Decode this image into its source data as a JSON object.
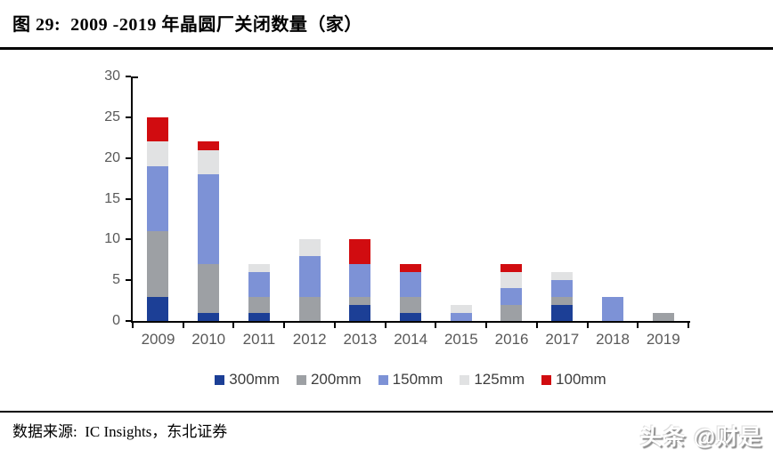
{
  "title": "图 29:  2009 -2019 年晶圆厂关闭数量（家）",
  "source": "数据来源:  IC Insights，东北证券",
  "watermark": "头条 @财是",
  "colors": {
    "axis": "#000000",
    "tick_label": "#595959",
    "legend_label": "#3d3d3d"
  },
  "chart_data": {
    "type": "bar",
    "stacked": true,
    "title": "2009-2019 年晶圆厂关闭数量（家）",
    "xlabel": "",
    "ylabel": "",
    "categories": [
      "2009",
      "2010",
      "2011",
      "2012",
      "2013",
      "2014",
      "2015",
      "2016",
      "2017",
      "2018",
      "2019"
    ],
    "series": [
      {
        "name": "300mm",
        "color": "#1c3f96",
        "values": [
          3,
          1,
          1,
          0,
          2,
          1,
          0,
          0,
          2,
          0,
          0
        ]
      },
      {
        "name": "200mm",
        "color": "#9da0a4",
        "values": [
          8,
          6,
          2,
          3,
          1,
          2,
          0,
          2,
          1,
          0,
          1
        ]
      },
      {
        "name": "150mm",
        "color": "#7d92d6",
        "values": [
          8,
          11,
          3,
          5,
          4,
          3,
          1,
          2,
          2,
          3,
          0
        ]
      },
      {
        "name": "125mm",
        "color": "#e1e2e3",
        "values": [
          3,
          3,
          1,
          2,
          0,
          0,
          1,
          2,
          1,
          0,
          0
        ]
      },
      {
        "name": "100mm",
        "color": "#d10c10",
        "values": [
          3,
          1,
          0,
          0,
          3,
          1,
          0,
          1,
          0,
          0,
          0
        ]
      }
    ],
    "totals": [
      25,
      22,
      7,
      10,
      10,
      7,
      2,
      7,
      6,
      3,
      1
    ],
    "ylim": [
      0,
      30
    ],
    "yticks": [
      0,
      5,
      10,
      15,
      20,
      25,
      30
    ],
    "grid": false,
    "legend_position": "bottom"
  }
}
